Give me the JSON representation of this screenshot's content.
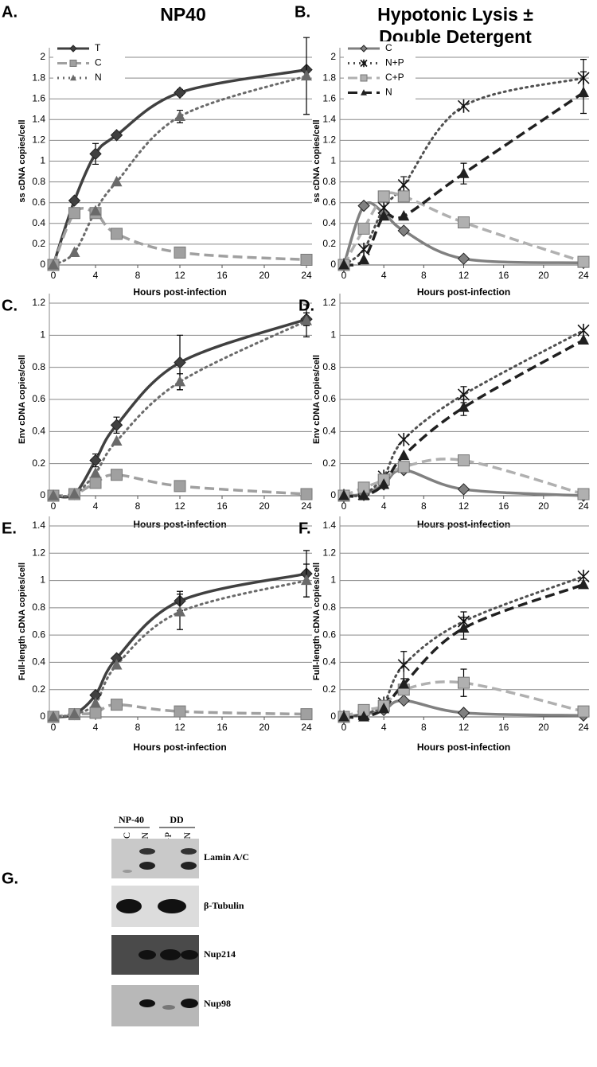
{
  "chart_data": [
    {
      "type": "line",
      "label": "A.",
      "title": [
        "NP40"
      ],
      "ylabel": "ss cDNA copies/cell",
      "xlabel": "Hours post-infection",
      "x": [
        0,
        2,
        4,
        6,
        12,
        24
      ],
      "xlim": [
        0,
        24
      ],
      "xticks": [
        0,
        4,
        8,
        12,
        16,
        20,
        24
      ],
      "ylim": [
        0,
        2
      ],
      "yticks": [
        0,
        0.2,
        0.4,
        0.6,
        0.8,
        1,
        1.2,
        1.4,
        1.6,
        1.8,
        2
      ],
      "grid": true,
      "legend": "upper left",
      "series": [
        {
          "name": "T",
          "color": "#404040",
          "dash": "solid",
          "marker": "diamond",
          "values": [
            0,
            0.62,
            1.07,
            1.25,
            1.66,
            1.88
          ],
          "errors": [
            null,
            null,
            0.1,
            null,
            0.03,
            null
          ]
        },
        {
          "name": "C",
          "color": "#a0a0a0",
          "dash": "dashed",
          "marker": "square",
          "values": [
            0,
            0.5,
            0.5,
            0.3,
            0.12,
            0.05
          ],
          "errors": [
            null,
            null,
            null,
            null,
            null,
            null
          ]
        },
        {
          "name": "N",
          "color": "#6a6a6a",
          "dash": "dotted",
          "marker": "triangle",
          "values": [
            0,
            0.12,
            0.52,
            0.8,
            1.43,
            1.82
          ],
          "errors": [
            null,
            null,
            null,
            null,
            0.06,
            0.37
          ]
        }
      ]
    },
    {
      "type": "line",
      "label": "B.",
      "title": [
        "Hypotonic Lysis ±",
        "Double Detergent"
      ],
      "ylabel": "ss cDNA copies/cell",
      "xlabel": "Hours post-infection",
      "x": [
        0,
        2,
        4,
        6,
        12,
        24
      ],
      "xlim": [
        0,
        24
      ],
      "xticks": [
        0,
        4,
        8,
        12,
        16,
        20,
        24
      ],
      "ylim": [
        0,
        2
      ],
      "yticks": [
        0,
        0.2,
        0.4,
        0.6,
        0.8,
        1,
        1.2,
        1.4,
        1.6,
        1.8,
        2
      ],
      "grid": true,
      "legend": "upper left",
      "series": [
        {
          "name": "C",
          "color": "#808080",
          "dash": "solid",
          "marker": "diamond",
          "values": [
            0,
            0.57,
            0.5,
            0.33,
            0.06,
            0.02
          ],
          "errors": [
            null,
            null,
            null,
            null,
            null,
            null
          ]
        },
        {
          "name": "N+P",
          "color": "#505050",
          "dash": "dotted",
          "marker": "asterisk",
          "values": [
            0,
            0.15,
            0.55,
            0.77,
            1.53,
            1.8
          ],
          "errors": [
            null,
            null,
            null,
            0.08,
            null,
            0.18
          ]
        },
        {
          "name": "C+P",
          "color": "#b0b0b0",
          "dash": "dashed",
          "marker": "square",
          "values": [
            0,
            0.35,
            0.66,
            0.66,
            0.41,
            0.03
          ],
          "errors": [
            null,
            null,
            null,
            null,
            null,
            null
          ]
        },
        {
          "name": "N",
          "color": "#202020",
          "dash": "dashed",
          "marker": "triangle",
          "values": [
            0,
            0.05,
            0.47,
            0.47,
            0.88,
            1.66
          ],
          "errors": [
            null,
            null,
            null,
            null,
            0.1,
            0.2
          ]
        }
      ]
    },
    {
      "type": "line",
      "label": "C.",
      "ylabel": "Env cDNA copies/cell",
      "xlabel": "Hours post-infection",
      "x": [
        0,
        2,
        4,
        6,
        12,
        24
      ],
      "xlim": [
        0,
        24
      ],
      "xticks": [
        0,
        4,
        8,
        12,
        16,
        20,
        24
      ],
      "ylim": [
        0,
        1.2
      ],
      "yticks": [
        0,
        0.2,
        0.4,
        0.6,
        0.8,
        1,
        1.2
      ],
      "grid": true,
      "series": [
        {
          "color": "#404040",
          "dash": "solid",
          "marker": "diamond",
          "values": [
            0,
            0.01,
            0.22,
            0.44,
            0.83,
            1.1
          ],
          "errors": [
            null,
            null,
            0.04,
            0.05,
            0.17,
            0.04
          ]
        },
        {
          "color": "#a0a0a0",
          "dash": "dashed",
          "marker": "square",
          "values": [
            0,
            0.01,
            0.08,
            0.13,
            0.06,
            0.01
          ],
          "errors": [
            null,
            null,
            null,
            null,
            null,
            null
          ]
        },
        {
          "color": "#6a6a6a",
          "dash": "dotted",
          "marker": "triangle",
          "values": [
            0,
            0.01,
            0.14,
            0.34,
            0.71,
            1.09
          ],
          "errors": [
            null,
            null,
            null,
            null,
            0.05,
            0.1
          ]
        }
      ]
    },
    {
      "type": "line",
      "label": "D.",
      "ylabel": "Env cDNA copies/cell",
      "xlabel": "Hours post-infection",
      "x": [
        0,
        2,
        4,
        6,
        12,
        24
      ],
      "xlim": [
        0,
        24
      ],
      "xticks": [
        0,
        4,
        8,
        12,
        16,
        20,
        24
      ],
      "ylim": [
        0,
        1.2
      ],
      "yticks": [
        0,
        0.2,
        0.4,
        0.6,
        0.8,
        1,
        1.2
      ],
      "grid": true,
      "series": [
        {
          "color": "#808080",
          "dash": "solid",
          "marker": "diamond",
          "values": [
            0,
            0.01,
            0.07,
            0.16,
            0.04,
            0
          ],
          "errors": [
            null,
            null,
            null,
            null,
            null,
            null
          ]
        },
        {
          "color": "#505050",
          "dash": "dotted",
          "marker": "asterisk",
          "values": [
            0,
            0.01,
            0.12,
            0.35,
            0.63,
            1.03
          ],
          "errors": [
            null,
            null,
            null,
            null,
            0.05,
            null
          ]
        },
        {
          "color": "#b0b0b0",
          "dash": "dashed",
          "marker": "square",
          "values": [
            0,
            0.05,
            0.1,
            0.18,
            0.22,
            0.01
          ],
          "errors": [
            null,
            null,
            null,
            null,
            null,
            null
          ]
        },
        {
          "color": "#202020",
          "dash": "dashed",
          "marker": "triangle",
          "values": [
            0,
            0,
            0.07,
            0.25,
            0.55,
            0.97
          ],
          "errors": [
            null,
            null,
            null,
            null,
            0.05,
            null
          ]
        }
      ]
    },
    {
      "type": "line",
      "label": "E.",
      "ylabel": "Full-length cDNA copies/cell",
      "xlabel": "Hours post-infection",
      "x": [
        0,
        2,
        4,
        6,
        12,
        24
      ],
      "xlim": [
        0,
        24
      ],
      "xticks": [
        0,
        4,
        8,
        12,
        16,
        20,
        24
      ],
      "ylim": [
        0,
        1.4
      ],
      "yticks": [
        0,
        0.2,
        0.4,
        0.6,
        0.8,
        1,
        1.2,
        1.4
      ],
      "grid": true,
      "series": [
        {
          "color": "#404040",
          "dash": "solid",
          "marker": "diamond",
          "values": [
            0,
            0.02,
            0.16,
            0.43,
            0.85,
            1.05
          ],
          "errors": [
            null,
            null,
            null,
            null,
            0.07,
            0.17
          ]
        },
        {
          "color": "#a0a0a0",
          "dash": "dashed",
          "marker": "square",
          "values": [
            0,
            0.02,
            0.03,
            0.09,
            0.04,
            0.02
          ],
          "errors": [
            null,
            null,
            null,
            null,
            null,
            null
          ]
        },
        {
          "color": "#6a6a6a",
          "dash": "dotted",
          "marker": "triangle",
          "values": [
            0,
            0.02,
            0.1,
            0.38,
            0.77,
            1
          ],
          "errors": [
            null,
            null,
            null,
            null,
            0.13,
            0.12
          ]
        }
      ]
    },
    {
      "type": "line",
      "label": "F.",
      "ylabel": "Full-length cDNA copies/cell",
      "xlabel": "Hours post-infection",
      "x": [
        0,
        2,
        4,
        6,
        12,
        24
      ],
      "xlim": [
        0,
        24
      ],
      "xticks": [
        0,
        4,
        8,
        12,
        16,
        20,
        24
      ],
      "ylim": [
        0,
        1.4
      ],
      "yticks": [
        0,
        0.2,
        0.4,
        0.6,
        0.8,
        1,
        1.2,
        1.4
      ],
      "grid": true,
      "series": [
        {
          "color": "#808080",
          "dash": "solid",
          "marker": "diamond",
          "values": [
            0,
            0.02,
            0.05,
            0.12,
            0.03,
            0.01
          ],
          "errors": [
            null,
            null,
            null,
            null,
            null,
            null
          ]
        },
        {
          "color": "#505050",
          "dash": "dotted",
          "marker": "asterisk",
          "values": [
            0,
            0.02,
            0.1,
            0.38,
            0.7,
            1.03
          ],
          "errors": [
            null,
            null,
            null,
            0.1,
            0.07,
            null
          ]
        },
        {
          "color": "#b0b0b0",
          "dash": "dashed",
          "marker": "square",
          "values": [
            0,
            0.05,
            0.08,
            0.2,
            0.25,
            0.04
          ],
          "errors": [
            null,
            null,
            null,
            null,
            0.1,
            null
          ]
        },
        {
          "color": "#202020",
          "dash": "dashed",
          "marker": "triangle",
          "values": [
            0,
            0,
            0.06,
            0.24,
            0.65,
            0.97
          ],
          "errors": [
            null,
            null,
            null,
            null,
            0.08,
            null
          ]
        }
      ]
    }
  ],
  "blot": {
    "label": "G.",
    "groups": [
      "NP-40",
      "DD"
    ],
    "lanes": [
      "C",
      "N",
      "C+P",
      "N"
    ],
    "bands": [
      "Lamin A/C",
      "β-Tubulin",
      "Nup214",
      "Nup98"
    ]
  }
}
